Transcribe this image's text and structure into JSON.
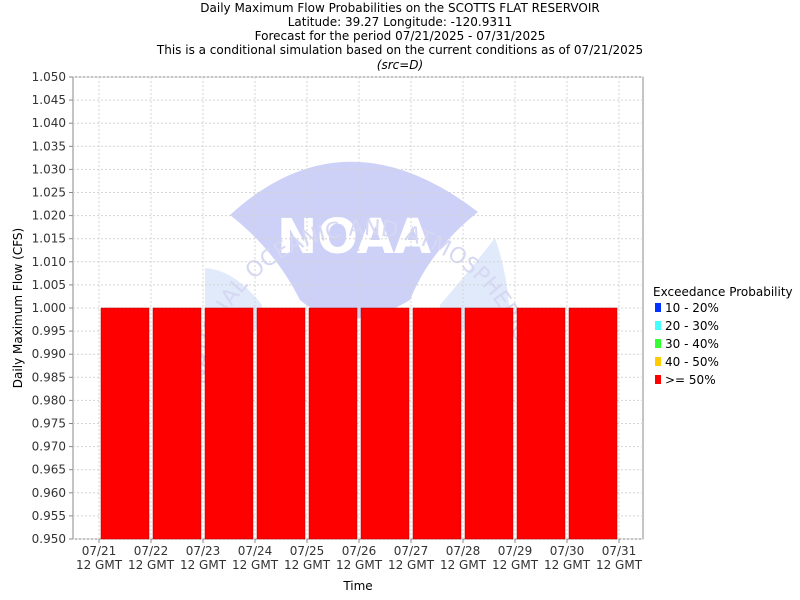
{
  "chart_data": {
    "type": "bar",
    "title": "Daily Maximum Flow Probabilities on the SCOTTS FLAT RESERVOIR",
    "subtitle_lines": [
      "Latitude: 39.27 Longitude: -120.9311",
      "Forecast for the period 07/21/2025 - 07/31/2025",
      "This is a conditional simulation based on the current conditions as of 07/21/2025",
      "(src=D)"
    ],
    "xlabel": "Time",
    "ylabel": "Daily Maximum Flow (CFS)",
    "ylim": [
      0.95,
      1.05
    ],
    "y_ticks": [
      "0.950",
      "0.955",
      "0.960",
      "0.965",
      "0.970",
      "0.975",
      "0.980",
      "0.985",
      "0.990",
      "0.995",
      "1.000",
      "1.005",
      "1.010",
      "1.015",
      "1.020",
      "1.025",
      "1.030",
      "1.035",
      "1.040",
      "1.045",
      "1.050"
    ],
    "x_ticks": [
      {
        "date": "07/21",
        "time": "12 GMT"
      },
      {
        "date": "07/22",
        "time": "12 GMT"
      },
      {
        "date": "07/23",
        "time": "12 GMT"
      },
      {
        "date": "07/24",
        "time": "12 GMT"
      },
      {
        "date": "07/25",
        "time": "12 GMT"
      },
      {
        "date": "07/26",
        "time": "12 GMT"
      },
      {
        "date": "07/27",
        "time": "12 GMT"
      },
      {
        "date": "07/28",
        "time": "12 GMT"
      },
      {
        "date": "07/29",
        "time": "12 GMT"
      },
      {
        "date": "07/30",
        "time": "12 GMT"
      },
      {
        "date": "07/31",
        "time": "12 GMT"
      }
    ],
    "bars": [
      {
        "start": "07/21",
        "end": "07/22",
        "value": 1.0,
        "category": ">= 50%"
      },
      {
        "start": "07/22",
        "end": "07/23",
        "value": 1.0,
        "category": ">= 50%"
      },
      {
        "start": "07/23",
        "end": "07/24",
        "value": 1.0,
        "category": ">= 50%"
      },
      {
        "start": "07/24",
        "end": "07/25",
        "value": 1.0,
        "category": ">= 50%"
      },
      {
        "start": "07/25",
        "end": "07/26",
        "value": 1.0,
        "category": ">= 50%"
      },
      {
        "start": "07/26",
        "end": "07/27",
        "value": 1.0,
        "category": ">= 50%"
      },
      {
        "start": "07/27",
        "end": "07/28",
        "value": 1.0,
        "category": ">= 50%"
      },
      {
        "start": "07/28",
        "end": "07/29",
        "value": 1.0,
        "category": ">= 50%"
      },
      {
        "start": "07/29",
        "end": "07/30",
        "value": 1.0,
        "category": ">= 50%"
      },
      {
        "start": "07/30",
        "end": "07/31",
        "value": 1.0,
        "category": ">= 50%"
      }
    ],
    "legend": {
      "title": "Exceedance Probability",
      "placement": "right",
      "items": [
        {
          "label": "10 - 20%",
          "color": "#0033ff"
        },
        {
          "label": "20 - 30%",
          "color": "#44ffff"
        },
        {
          "label": "30 - 40%",
          "color": "#33ff33"
        },
        {
          "label": "40 - 50%",
          "color": "#ffcc00"
        },
        {
          "label": ">= 50%",
          "color": "#ff0000"
        }
      ]
    },
    "grid": true,
    "watermark": {
      "text": "NOAA",
      "ring_text": "NATIONAL OCEANIC AND ATMOSPHERIC ADMINISTRATION"
    }
  }
}
